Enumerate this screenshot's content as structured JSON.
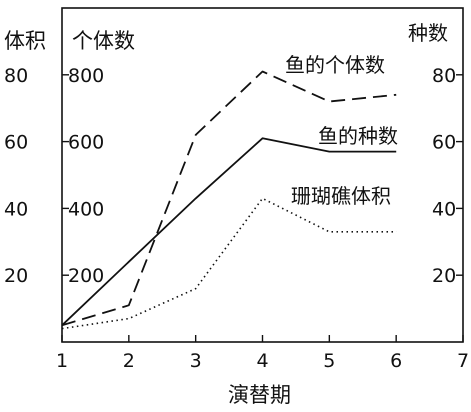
{
  "chart_data": {
    "type": "line",
    "xlabel": "演替期",
    "x_ticks": [
      1,
      2,
      3,
      4,
      5,
      6,
      7
    ],
    "xlim": [
      1,
      7
    ],
    "left_axis_outer": {
      "title": "体积",
      "ticks": [
        20,
        40,
        60,
        80
      ],
      "ylim": [
        0,
        100
      ]
    },
    "left_axis_inner": {
      "title": "个体数",
      "ticks": [
        200,
        400,
        600,
        800
      ],
      "ylim": [
        0,
        1000
      ]
    },
    "right_axis": {
      "title": "种数",
      "ticks": [
        20,
        40,
        60,
        80
      ],
      "ylim": [
        0,
        100
      ]
    },
    "grid": false,
    "legend": "inline labels",
    "series": [
      {
        "name": "鱼的个体数",
        "axis": "left_axis_inner",
        "style": "dashed",
        "x": [
          1,
          2,
          3,
          4,
          5,
          6
        ],
        "y": [
          50,
          110,
          620,
          810,
          720,
          740
        ]
      },
      {
        "name": "鱼的种数",
        "axis": "right_axis",
        "style": "solid",
        "x": [
          1,
          2,
          3,
          4,
          5,
          6
        ],
        "y": [
          5,
          24,
          43,
          61,
          57,
          57
        ]
      },
      {
        "name": "珊瑚礁体积",
        "axis": "left_axis_outer",
        "style": "dotted",
        "x": [
          1,
          2,
          3,
          4,
          5,
          6
        ],
        "y": [
          4,
          7,
          16,
          43,
          33,
          33
        ]
      }
    ]
  }
}
